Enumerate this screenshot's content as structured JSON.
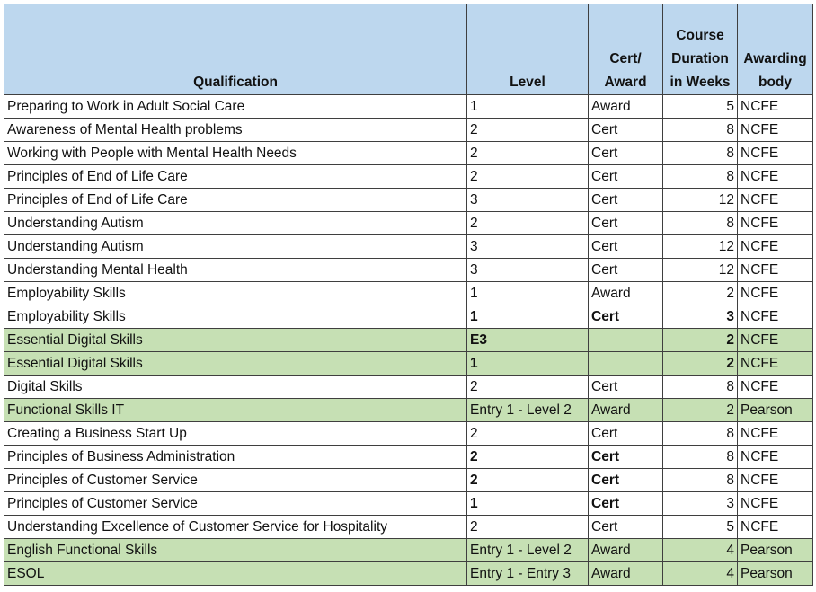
{
  "headers": {
    "qualification": "Qualification",
    "level": "Level",
    "cert_award": "Cert/ Award",
    "duration": "Course Duration in Weeks",
    "body": "Awarding body"
  },
  "highlight_color": "#c6e0b4",
  "header_color": "#bdd7ee",
  "rows": [
    {
      "qualification": "Preparing to Work in Adult Social Care",
      "level": "1",
      "type": "Award",
      "weeks": "5",
      "body": "NCFE",
      "highlight": false,
      "bold_level": false,
      "bold_type": false,
      "bold_weeks": false
    },
    {
      "qualification": "Awareness of Mental Health problems",
      "level": "2",
      "type": "Cert",
      "weeks": "8",
      "body": "NCFE",
      "highlight": false,
      "bold_level": false,
      "bold_type": false,
      "bold_weeks": false
    },
    {
      "qualification": "Working with People with Mental Health Needs",
      "level": "2",
      "type": "Cert",
      "weeks": "8",
      "body": "NCFE",
      "highlight": false,
      "bold_level": false,
      "bold_type": false,
      "bold_weeks": false
    },
    {
      "qualification": "Principles of End of Life Care",
      "level": "2",
      "type": "Cert",
      "weeks": "8",
      "body": "NCFE",
      "highlight": false,
      "bold_level": false,
      "bold_type": false,
      "bold_weeks": false
    },
    {
      "qualification": "Principles of End of Life Care",
      "level": "3",
      "type": "Cert",
      "weeks": "12",
      "body": "NCFE",
      "highlight": false,
      "bold_level": false,
      "bold_type": false,
      "bold_weeks": false
    },
    {
      "qualification": "Understanding Autism",
      "level": "2",
      "type": "Cert",
      "weeks": "8",
      "body": "NCFE",
      "highlight": false,
      "bold_level": false,
      "bold_type": false,
      "bold_weeks": false
    },
    {
      "qualification": "Understanding Autism",
      "level": "3",
      "type": "Cert",
      "weeks": "12",
      "body": "NCFE",
      "highlight": false,
      "bold_level": false,
      "bold_type": false,
      "bold_weeks": false
    },
    {
      "qualification": "Understanding Mental Health",
      "level": "3",
      "type": "Cert",
      "weeks": "12",
      "body": "NCFE",
      "highlight": false,
      "bold_level": false,
      "bold_type": false,
      "bold_weeks": false
    },
    {
      "qualification": "Employability Skills",
      "level": "1",
      "type": "Award",
      "weeks": "2",
      "body": "NCFE",
      "highlight": false,
      "bold_level": false,
      "bold_type": false,
      "bold_weeks": false
    },
    {
      "qualification": "Employability Skills",
      "level": "1",
      "type": "Cert",
      "weeks": "3",
      "body": "NCFE",
      "highlight": false,
      "bold_level": true,
      "bold_type": true,
      "bold_weeks": true
    },
    {
      "qualification": "Essential Digital Skills",
      "level": "E3",
      "type": "",
      "weeks": "2",
      "body": "NCFE",
      "highlight": true,
      "bold_level": true,
      "bold_type": false,
      "bold_weeks": true
    },
    {
      "qualification": "Essential Digital Skills",
      "level": "1",
      "type": "",
      "weeks": "2",
      "body": "NCFE",
      "highlight": true,
      "bold_level": true,
      "bold_type": false,
      "bold_weeks": true
    },
    {
      "qualification": "Digital Skills",
      "level": "2",
      "type": "Cert",
      "weeks": "8",
      "body": "NCFE",
      "highlight": false,
      "bold_level": false,
      "bold_type": false,
      "bold_weeks": false
    },
    {
      "qualification": "Functional Skills IT",
      "level": "Entry 1 - Level 2",
      "type": "Award",
      "weeks": "2",
      "body": "Pearson",
      "highlight": true,
      "bold_level": false,
      "bold_type": false,
      "bold_weeks": false
    },
    {
      "qualification": "Creating a Business Start Up",
      "level": "2",
      "type": "Cert",
      "weeks": "8",
      "body": "NCFE",
      "highlight": false,
      "bold_level": false,
      "bold_type": false,
      "bold_weeks": false
    },
    {
      "qualification": "Principles of Business Administration",
      "level": "2",
      "type": "Cert",
      "weeks": "8",
      "body": "NCFE",
      "highlight": false,
      "bold_level": true,
      "bold_type": true,
      "bold_weeks": false
    },
    {
      "qualification": "Principles of Customer Service",
      "level": "2",
      "type": "Cert",
      "weeks": "8",
      "body": "NCFE",
      "highlight": false,
      "bold_level": true,
      "bold_type": true,
      "bold_weeks": false
    },
    {
      "qualification": "Principles of Customer Service",
      "level": "1",
      "type": "Cert",
      "weeks": "3",
      "body": "NCFE",
      "highlight": false,
      "bold_level": true,
      "bold_type": true,
      "bold_weeks": false
    },
    {
      "qualification": "Understanding Excellence of Customer Service for Hospitality",
      "level": "2",
      "type": "Cert",
      "weeks": "5",
      "body": "NCFE",
      "highlight": false,
      "bold_level": false,
      "bold_type": false,
      "bold_weeks": false
    },
    {
      "qualification": "English Functional Skills",
      "level": "Entry 1 - Level 2",
      "type": "Award",
      "weeks": "4",
      "body": "Pearson",
      "highlight": true,
      "bold_level": false,
      "bold_type": false,
      "bold_weeks": false
    },
    {
      "qualification": "ESOL",
      "level": "Entry 1 - Entry 3",
      "type": "Award",
      "weeks": "4",
      "body": "Pearson",
      "highlight": true,
      "bold_level": false,
      "bold_type": false,
      "bold_weeks": false
    }
  ]
}
